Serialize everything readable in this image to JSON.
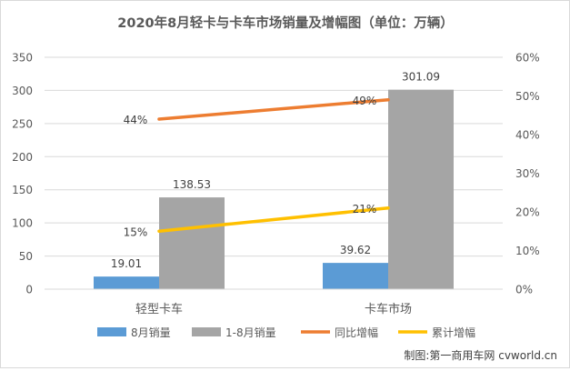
{
  "chart_data": {
    "type": "bar",
    "title": "2020年8月轻卡与卡车市场销量及增幅图（单位：万辆）",
    "categories": [
      "轻型卡车",
      "卡车市场"
    ],
    "series": [
      {
        "name": "8月销量",
        "type": "bar",
        "axis": "left",
        "values": [
          19.01,
          39.62
        ],
        "labels": [
          "19.01",
          "39.62"
        ]
      },
      {
        "name": "1-8月销量",
        "type": "bar",
        "axis": "left",
        "values": [
          138.53,
          301.09
        ],
        "labels": [
          "138.53",
          "301.09"
        ]
      },
      {
        "name": "同比增幅",
        "type": "line",
        "axis": "right",
        "values": [
          0.44,
          0.49
        ],
        "labels": [
          "44%",
          "49%"
        ]
      },
      {
        "name": "累计增幅",
        "type": "line",
        "axis": "right",
        "values": [
          0.15,
          0.21
        ],
        "labels": [
          "15%",
          "21%"
        ]
      }
    ],
    "colors": [
      "#5b9bd5",
      "#a5a5a5",
      "#ed7d31",
      "#ffc000"
    ],
    "ylim": [
      0,
      350
    ],
    "y_ticks": [
      "0",
      "50",
      "100",
      "150",
      "200",
      "250",
      "300",
      "350"
    ],
    "y2lim": [
      0,
      0.6
    ],
    "y2_ticks": [
      "0%",
      "10%",
      "20%",
      "30%",
      "40%",
      "50%",
      "60%"
    ],
    "grid": true,
    "legend": "bottom"
  },
  "watermark": "制图:第一商用车网 cvworld.cn"
}
